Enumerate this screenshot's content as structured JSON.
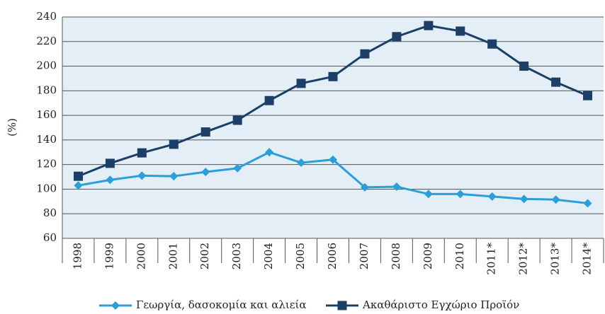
{
  "chart_data": {
    "type": "line",
    "y_label": "(%)",
    "categories": [
      "1998",
      "1999",
      "2000",
      "2001",
      "2002",
      "2003",
      "2004",
      "2005",
      "2006",
      "2007",
      "2008",
      "2009",
      "2010",
      "2011*",
      "2012*",
      "2013*",
      "2014*"
    ],
    "series": [
      {
        "name": "Γεωργία, δασοκομία και αλιεία",
        "color": "#2b9fd7",
        "marker": "diamond",
        "values": [
          103,
          107.5,
          111,
          110.5,
          114,
          117,
          130,
          121.5,
          124,
          101.5,
          102,
          96,
          96,
          94,
          92,
          91.5,
          88.5
        ]
      },
      {
        "name": "Ακαθάριστο Εγχώριο Προϊόν",
        "color": "#1b3f66",
        "marker": "square",
        "values": [
          110.5,
          121,
          129.5,
          136.5,
          146.5,
          156,
          172,
          186,
          191.5,
          210,
          224,
          233,
          228.5,
          218,
          200,
          187,
          176
        ]
      }
    ],
    "ylim": [
      60,
      240
    ],
    "yticks": [
      60,
      80,
      100,
      120,
      140,
      160,
      180,
      200,
      220,
      240
    ],
    "grid": true,
    "background": "#e3eef6",
    "legend": "bottom"
  }
}
